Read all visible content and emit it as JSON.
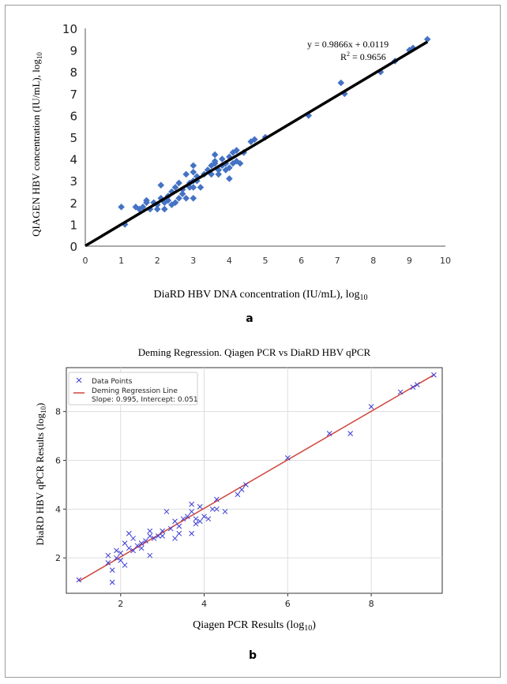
{
  "chart_data": [
    {
      "panel": "a",
      "type": "scatter",
      "title": "",
      "xlabel": "DiaRD HBV DNA concentration (IU/mL), log",
      "xlabel_sub": "10",
      "ylabel": "QIAGEN HBV concentration (IU/mL), log",
      "ylabel_sub": "10",
      "xlim": [
        0,
        10
      ],
      "ylim": [
        0,
        10
      ],
      "xticks": [
        "0",
        "1",
        "2",
        "3",
        "4",
        "5",
        "6",
        "7",
        "8",
        "9",
        "10"
      ],
      "yticks": [
        "0",
        "1",
        "2",
        "3",
        "4",
        "5",
        "6",
        "7",
        "8",
        "9",
        "10"
      ],
      "equation": "y = 0.9866x + 0.0119",
      "r2_label": "R",
      "r2_sup": "2",
      "r2_value": " = 0.9656",
      "fit": {
        "slope": 0.9866,
        "intercept": 0.0119
      },
      "marker_color": "#4472c4",
      "line_color": "#000000",
      "points": [
        [
          1.0,
          1.8
        ],
        [
          1.1,
          1.0
        ],
        [
          1.4,
          1.8
        ],
        [
          1.5,
          1.7
        ],
        [
          1.6,
          1.8
        ],
        [
          1.7,
          2.0
        ],
        [
          1.7,
          2.1
        ],
        [
          1.8,
          1.7
        ],
        [
          1.9,
          2.0
        ],
        [
          2.0,
          1.7
        ],
        [
          2.0,
          1.9
        ],
        [
          2.1,
          2.2
        ],
        [
          2.1,
          2.8
        ],
        [
          2.2,
          1.7
        ],
        [
          2.2,
          2.0
        ],
        [
          2.3,
          2.1
        ],
        [
          2.3,
          2.3
        ],
        [
          2.4,
          1.9
        ],
        [
          2.4,
          2.5
        ],
        [
          2.5,
          2.0
        ],
        [
          2.5,
          2.7
        ],
        [
          2.6,
          2.2
        ],
        [
          2.6,
          2.9
        ],
        [
          2.7,
          2.4
        ],
        [
          2.7,
          2.6
        ],
        [
          2.8,
          2.2
        ],
        [
          2.8,
          3.3
        ],
        [
          2.9,
          2.7
        ],
        [
          2.9,
          2.9
        ],
        [
          3.0,
          2.2
        ],
        [
          3.0,
          2.7
        ],
        [
          3.0,
          3.0
        ],
        [
          3.0,
          3.4
        ],
        [
          3.0,
          3.7
        ],
        [
          3.1,
          3.0
        ],
        [
          3.1,
          3.2
        ],
        [
          3.2,
          2.7
        ],
        [
          3.3,
          3.3
        ],
        [
          3.4,
          3.5
        ],
        [
          3.5,
          3.3
        ],
        [
          3.5,
          3.7
        ],
        [
          3.6,
          3.8
        ],
        [
          3.6,
          3.9
        ],
        [
          3.6,
          4.2
        ],
        [
          3.7,
          3.3
        ],
        [
          3.7,
          3.5
        ],
        [
          3.8,
          3.7
        ],
        [
          3.8,
          4.0
        ],
        [
          3.9,
          3.5
        ],
        [
          3.9,
          3.8
        ],
        [
          4.0,
          3.1
        ],
        [
          4.0,
          3.6
        ],
        [
          4.0,
          4.1
        ],
        [
          4.1,
          3.8
        ],
        [
          4.1,
          4.3
        ],
        [
          4.2,
          3.9
        ],
        [
          4.2,
          4.4
        ],
        [
          4.3,
          3.8
        ],
        [
          4.4,
          4.3
        ],
        [
          4.6,
          4.8
        ],
        [
          4.7,
          4.9
        ],
        [
          5.0,
          5.0
        ],
        [
          6.2,
          6.0
        ],
        [
          7.1,
          7.5
        ],
        [
          7.2,
          7.0
        ],
        [
          8.2,
          8.0
        ],
        [
          8.6,
          8.5
        ],
        [
          9.0,
          9.0
        ],
        [
          9.1,
          9.1
        ],
        [
          9.5,
          9.5
        ]
      ]
    },
    {
      "panel": "b",
      "type": "scatter",
      "title": "Deming Regression. Qiagen PCR vs DiaRD HBV qPCR",
      "xlabel": "Qiagen PCR Results (log",
      "xlabel_sub": "10",
      "xlabel_end": ")",
      "ylabel": "DiaRD HBV qPCR Results (log",
      "ylabel_sub": "10",
      "ylabel_end": ")",
      "xlim": [
        0.7,
        9.7
      ],
      "ylim": [
        0.55,
        9.8
      ],
      "xticks": [
        2,
        4,
        6,
        8
      ],
      "yticks": [
        2,
        4,
        6,
        8
      ],
      "legend": {
        "position": "top-left",
        "points_label": "Data Points",
        "line_label": "Deming Regression Line",
        "line_detail": "Slope: 0.995, Intercept: 0.051"
      },
      "fit": {
        "slope": 0.995,
        "intercept": 0.051,
        "x_range": [
          1.0,
          9.5
        ]
      },
      "marker_color": "#3b3bd4",
      "line_color": "#d0453c",
      "points": [
        [
          1.0,
          1.1
        ],
        [
          1.7,
          2.1
        ],
        [
          1.7,
          1.8
        ],
        [
          1.8,
          1.0
        ],
        [
          1.8,
          1.5
        ],
        [
          1.9,
          2.0
        ],
        [
          1.9,
          2.3
        ],
        [
          2.0,
          1.9
        ],
        [
          2.0,
          2.2
        ],
        [
          2.1,
          1.7
        ],
        [
          2.1,
          2.6
        ],
        [
          2.2,
          2.4
        ],
        [
          2.2,
          3.0
        ],
        [
          2.3,
          2.3
        ],
        [
          2.3,
          2.8
        ],
        [
          2.4,
          2.5
        ],
        [
          2.5,
          2.6
        ],
        [
          2.5,
          2.4
        ],
        [
          2.6,
          2.7
        ],
        [
          2.7,
          2.1
        ],
        [
          2.7,
          2.9
        ],
        [
          2.7,
          3.1
        ],
        [
          2.8,
          2.8
        ],
        [
          2.9,
          2.9
        ],
        [
          3.0,
          2.9
        ],
        [
          3.0,
          3.1
        ],
        [
          3.1,
          3.9
        ],
        [
          3.2,
          3.2
        ],
        [
          3.3,
          2.8
        ],
        [
          3.3,
          3.5
        ],
        [
          3.4,
          3.3
        ],
        [
          3.4,
          3.0
        ],
        [
          3.5,
          3.6
        ],
        [
          3.6,
          3.7
        ],
        [
          3.7,
          3.0
        ],
        [
          3.7,
          3.9
        ],
        [
          3.7,
          4.2
        ],
        [
          3.8,
          3.6
        ],
        [
          3.8,
          3.4
        ],
        [
          3.9,
          3.5
        ],
        [
          3.9,
          4.1
        ],
        [
          4.0,
          3.7
        ],
        [
          4.1,
          3.6
        ],
        [
          4.2,
          4.0
        ],
        [
          4.3,
          4.0
        ],
        [
          4.3,
          4.4
        ],
        [
          4.5,
          3.9
        ],
        [
          4.8,
          4.6
        ],
        [
          4.9,
          4.8
        ],
        [
          5.0,
          5.0
        ],
        [
          6.0,
          6.1
        ],
        [
          7.0,
          7.1
        ],
        [
          7.5,
          7.1
        ],
        [
          8.0,
          8.2
        ],
        [
          8.7,
          8.8
        ],
        [
          9.0,
          9.0
        ],
        [
          9.1,
          9.1
        ],
        [
          9.5,
          9.5
        ]
      ]
    }
  ],
  "panel_labels": {
    "a": "a",
    "b": "b"
  }
}
